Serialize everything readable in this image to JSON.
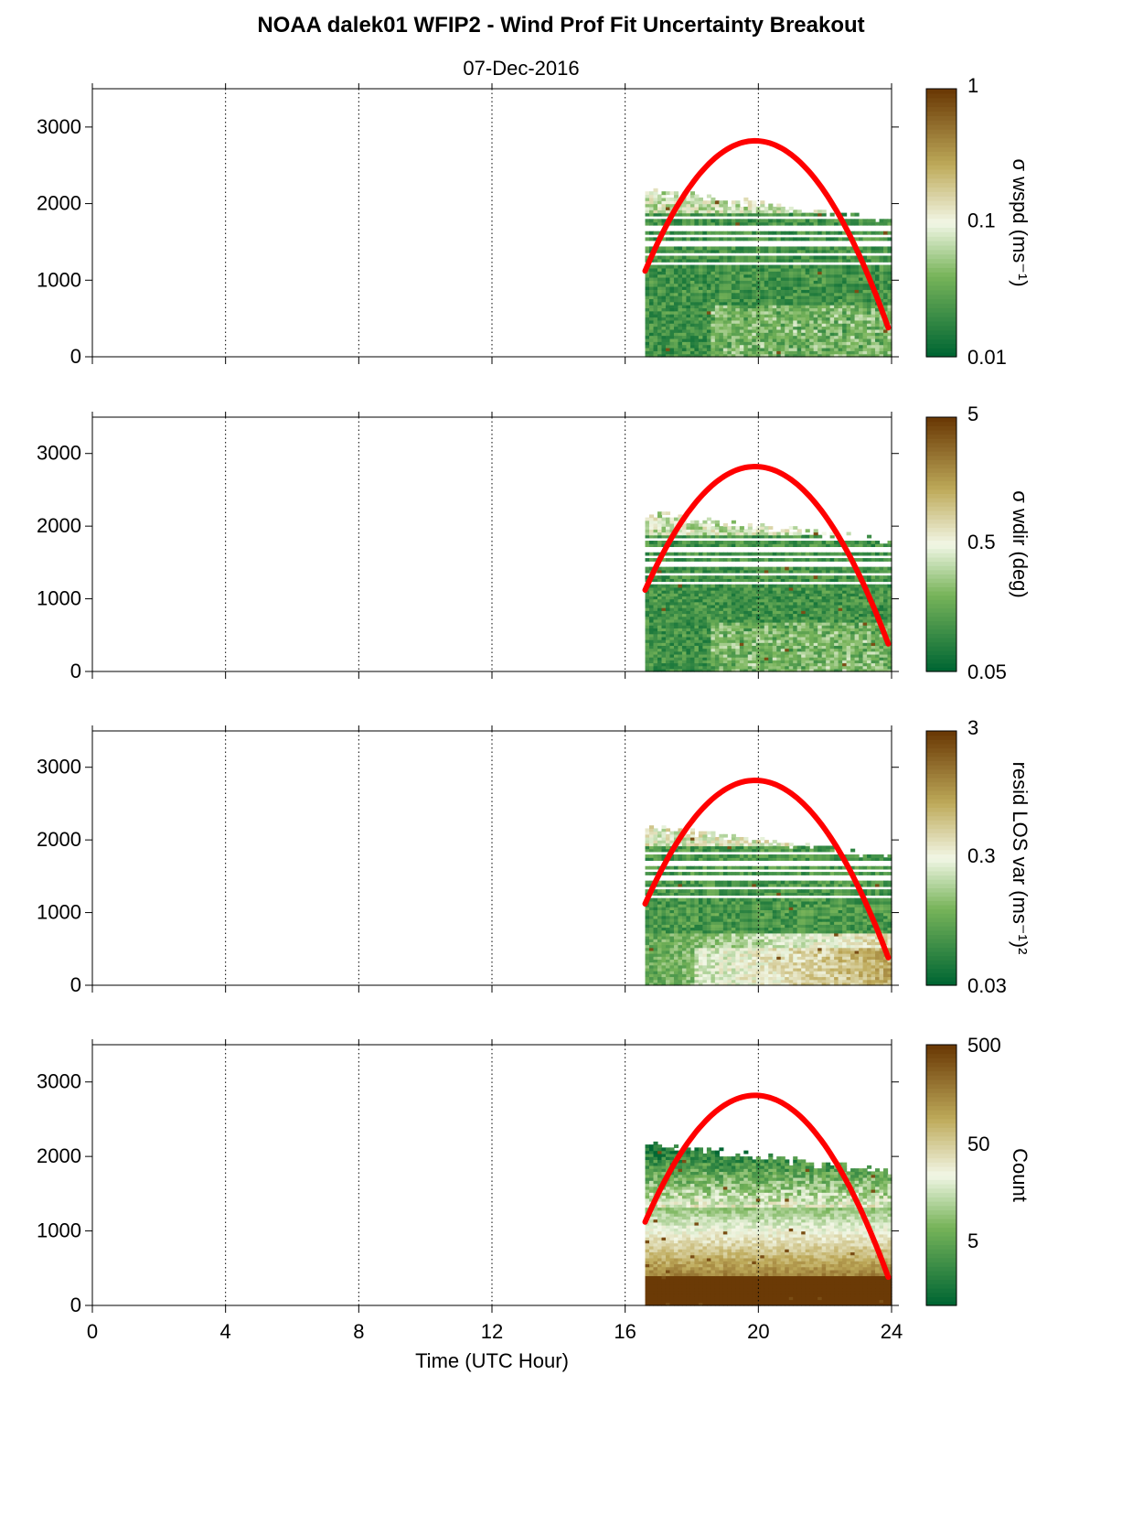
{
  "title": "NOAA dalek01 WFIP2 - Wind Prof Fit Uncertainty Breakout",
  "subtitle": "07-Dec-2016",
  "xlabel": "Time (UTC Hour)",
  "colors": {
    "dark_green": "#006633",
    "light": "#f2f7e6",
    "brown": "#6b3a06",
    "curve": "#ff0000"
  },
  "chart_data": [
    {
      "type": "heatmap",
      "colorbar_label": "σ wspd (ms⁻¹)",
      "colorbar_scale": "log",
      "colorbar_ticks": [
        "1",
        "0.1",
        "0.01"
      ],
      "x": [
        16.6,
        24
      ],
      "ylim": [
        0,
        3500
      ],
      "yticks": [
        "0",
        "1000",
        "2000",
        "3000"
      ],
      "curve": {
        "peak_x": 19.9,
        "peak_y": 2820,
        "start": [
          16.6,
          1120
        ],
        "end": [
          23.9,
          380
        ]
      }
    },
    {
      "type": "heatmap",
      "colorbar_label": "σ wdir (deg)",
      "colorbar_scale": "log",
      "colorbar_ticks": [
        "5",
        "0.5",
        "0.05"
      ],
      "x": [
        16.6,
        24
      ],
      "ylim": [
        0,
        3500
      ],
      "yticks": [
        "0",
        "1000",
        "2000",
        "3000"
      ],
      "curve": {
        "peak_x": 19.9,
        "peak_y": 2820,
        "start": [
          16.6,
          1120
        ],
        "end": [
          23.9,
          380
        ]
      }
    },
    {
      "type": "heatmap",
      "colorbar_label": "resid LOS var (ms⁻¹)²",
      "colorbar_scale": "log",
      "colorbar_ticks": [
        "3",
        "0.3",
        "0.03"
      ],
      "x": [
        16.6,
        24
      ],
      "ylim": [
        0,
        3500
      ],
      "yticks": [
        "0",
        "1000",
        "2000",
        "3000"
      ],
      "curve": {
        "peak_x": 19.9,
        "peak_y": 2820,
        "start": [
          16.6,
          1120
        ],
        "end": [
          23.9,
          380
        ]
      }
    },
    {
      "type": "heatmap",
      "colorbar_label": "Count",
      "colorbar_scale": "log",
      "colorbar_ticks": [
        "500",
        "50",
        "5"
      ],
      "x": [
        16.6,
        24
      ],
      "ylim": [
        0,
        3500
      ],
      "yticks": [
        "0",
        "1000",
        "2000",
        "3000"
      ],
      "xticks": [
        "0",
        "4",
        "8",
        "12",
        "16",
        "20",
        "24"
      ],
      "curve": {
        "peak_x": 19.9,
        "peak_y": 2820,
        "start": [
          16.6,
          1120
        ],
        "end": [
          23.9,
          380
        ]
      }
    }
  ]
}
